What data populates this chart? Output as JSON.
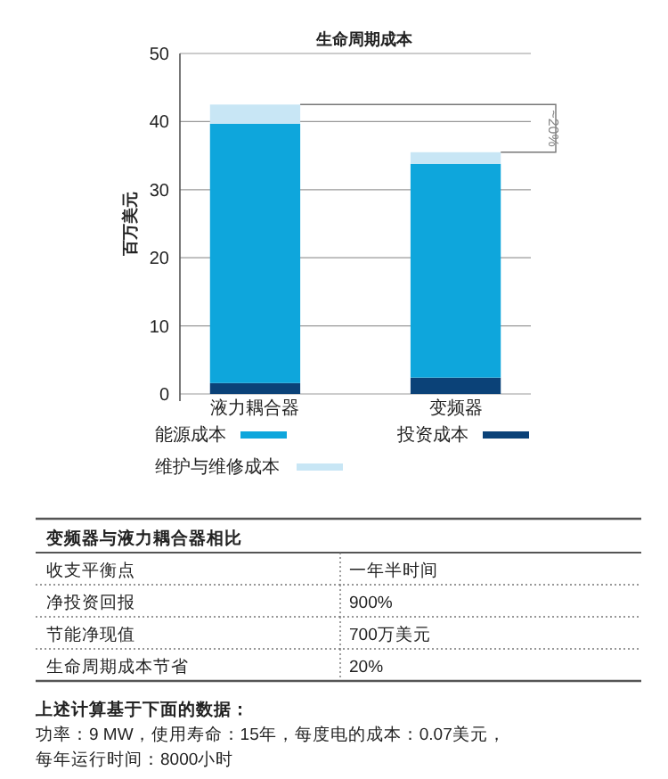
{
  "chart_data": {
    "type": "bar",
    "title": "生命周期成本",
    "ylabel": "百万美元",
    "categories": [
      "液力耦合器",
      "变频器"
    ],
    "stacked": true,
    "ylim": [
      0,
      50
    ],
    "yticks": [
      0,
      10,
      20,
      30,
      40,
      50
    ],
    "grid": "y",
    "legend": "bottom",
    "series": [
      {
        "name": "投资成本",
        "color": "#0b4278",
        "values": [
          1.6,
          2.4
        ]
      },
      {
        "name": "能源成本",
        "color": "#0ea6dc",
        "values": [
          38.1,
          31.4
        ]
      },
      {
        "name": "维护与维修成本",
        "color": "#c8e6f5",
        "values": [
          2.8,
          1.7
        ]
      }
    ],
    "annotations": [
      "~20%",
      "变频器与液力耦合器相比",
      "收支平衡点",
      "一年半时间",
      "净投资回报",
      "900%",
      "节能净现值",
      "700万美元",
      "生命周期成本节省",
      "20%",
      "上述计算基于下面的数据：",
      "功率：9 MW，使用寿命：15年，每度电的成本：0.07美元，",
      "每年运行时间：8000小时"
    ]
  }
}
